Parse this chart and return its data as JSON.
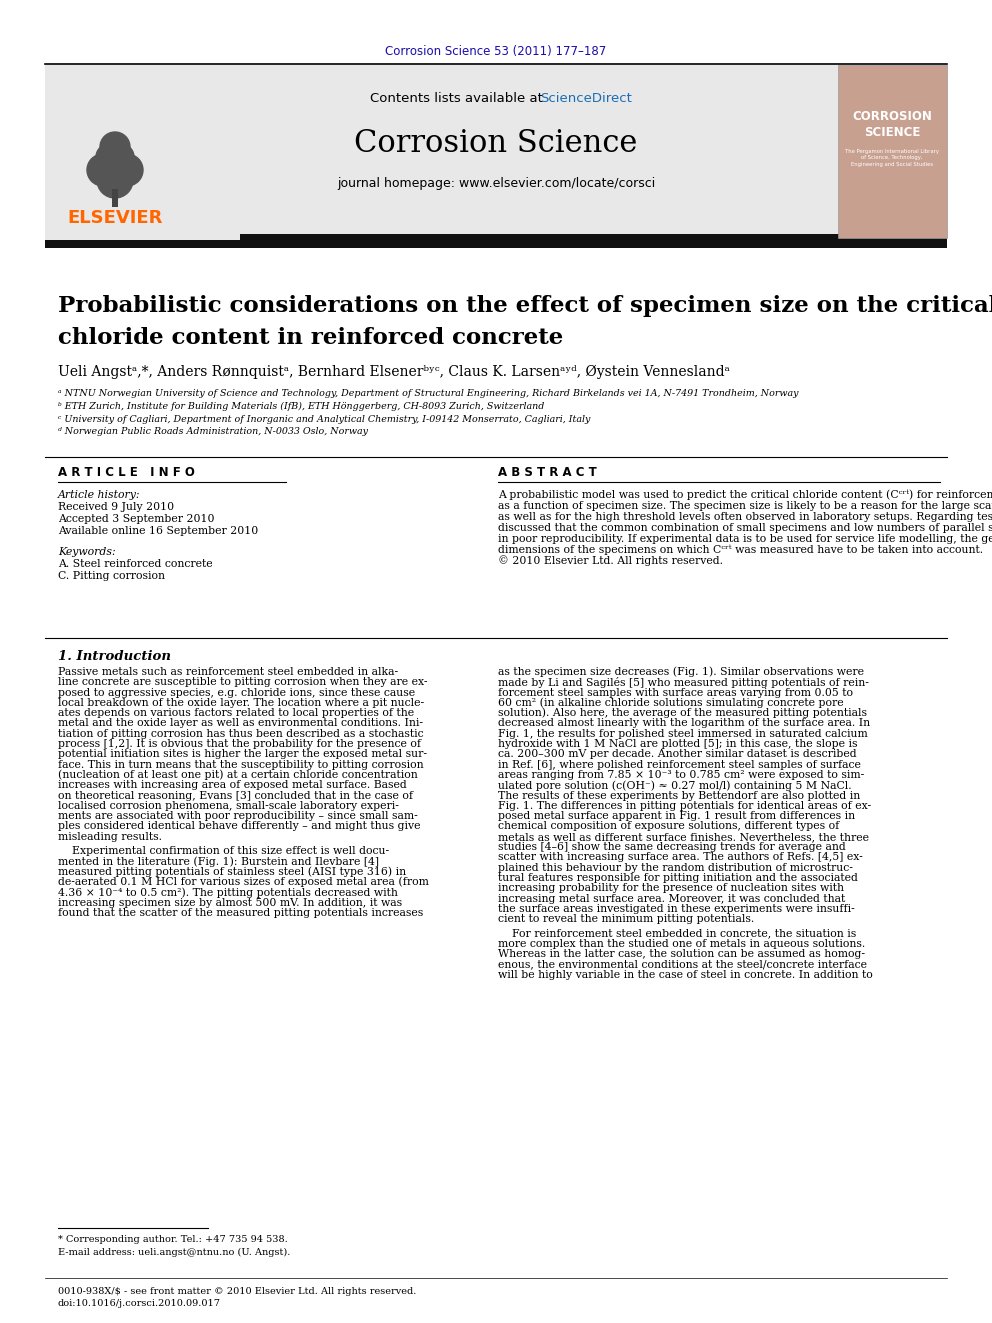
{
  "journal_ref": "Corrosion Science 53 (2011) 177–187",
  "journal_ref_color": "#1a0dab",
  "contents_text": "Contents lists available at ",
  "sciencedirect_text": "ScienceDirect",
  "sciencedirect_color": "#1a6db5",
  "journal_name": "Corrosion Science",
  "journal_homepage": "journal homepage: www.elsevier.com/locate/corsci",
  "title_line1": "Probabilistic considerations on the effect of specimen size on the critical",
  "title_line2": "chloride content in reinforced concrete",
  "authors": "Ueli Angstᵃ,*, Anders Rønnquistᵃ, Bernhard Elsenerᵇʸᶜ, Claus K. Larsenᵃʸᵈ, Øystein Venneslandᵃ",
  "affil_a": "ᵃ NTNU Norwegian University of Science and Technology, Department of Structural Engineering, Richard Birkelands vei 1A, N-7491 Trondheim, Norway",
  "affil_b": "ᵇ ETH Zurich, Institute for Building Materials (IfB), ETH Hönggerberg, CH-8093 Zurich, Switzerland",
  "affil_c": "ᶜ University of Cagliari, Department of Inorganic and Analytical Chemistry, I-09142 Monserrato, Cagliari, Italy",
  "affil_d": "ᵈ Norwegian Public Roads Administration, N-0033 Oslo, Norway",
  "article_info_title": "A R T I C L E   I N F O",
  "article_history_label": "Article history:",
  "received": "Received 9 July 2010",
  "accepted": "Accepted 3 September 2010",
  "available": "Available online 16 September 2010",
  "keywords_label": "Keywords:",
  "keyword1": "A. Steel reinforced concrete",
  "keyword2": "C. Pitting corrosion",
  "abstract_title": "A B S T R A C T",
  "abstract_text": "A probabilistic model was used to predict the critical chloride content (Cᶜʳᵗ) for reinforcement corrosion\nas a function of specimen size. The specimen size is likely to be a reason for the large scatter of Cᶜʳᵗ values\nas well as for the high threshold levels often observed in laboratory setups. Regarding test methods, it is\ndiscussed that the common combination of small specimens and low numbers of parallel samples results\nin poor reproducibility. If experimental data is to be used for service life modelling, the geometrical\ndimensions of the specimens on which Cᶜʳᵗ was measured have to be taken into account.\n© 2010 Elsevier Ltd. All rights reserved.",
  "section1_title": "1. Introduction",
  "intro_col1_para1": "Passive metals such as reinforcement steel embedded in alka-\nline concrete are susceptible to pitting corrosion when they are ex-\nposed to aggressive species, e.g. chloride ions, since these cause\nlocal breakdown of the oxide layer. The location where a pit nucle-\nates depends on various factors related to local properties of the\nmetal and the oxide layer as well as environmental conditions. Ini-\ntiation of pitting corrosion has thus been described as a stochastic\nprocess [1,2]. It is obvious that the probability for the presence of\npotential initiation sites is higher the larger the exposed metal sur-\nface. This in turn means that the susceptibility to pitting corrosion\n(nucleation of at least one pit) at a certain chloride concentration\nincreases with increasing area of exposed metal surface. Based\non theoretical reasoning, Evans [3] concluded that in the case of\nlocalised corrosion phenomena, small-scale laboratory experi-\nments are associated with poor reproducibility – since small sam-\nples considered identical behave differently – and might thus give\nmisleading results.",
  "intro_col1_para2": "    Experimental confirmation of this size effect is well docu-\nmented in the literature (Fig. 1): Burstein and Ilevbare [4]\nmeasured pitting potentials of stainless steel (AISI type 316) in\nde-aerated 0.1 M HCl for various sizes of exposed metal area (from\n4.36 × 10⁻⁴ to 0.5 cm²). The pitting potentials decreased with\nincreasing specimen size by almost 500 mV. In addition, it was\nfound that the scatter of the measured pitting potentials increases",
  "intro_col2_para1": "as the specimen size decreases (Fig. 1). Similar observations were\nmade by Li and Sagilés [5] who measured pitting potentials of rein-\nforcement steel samples with surface areas varying from 0.05 to\n60 cm² (in alkaline chloride solutions simulating concrete pore\nsolution). Also here, the average of the measured pitting potentials\ndecreased almost linearly with the logarithm of the surface area. In\nFig. 1, the results for polished steel immersed in saturated calcium\nhydroxide with 1 M NaCl are plotted [5]; in this case, the slope is\nca. 200–300 mV per decade. Another similar dataset is described\nin Ref. [6], where polished reinforcement steel samples of surface\nareas ranging from 7.85 × 10⁻³ to 0.785 cm² were exposed to sim-\nulated pore solution (c(OH⁻) ≈ 0.27 mol/l) containing 5 M NaCl.\nThe results of these experiments by Bettendorf are also plotted in\nFig. 1. The differences in pitting potentials for identical areas of ex-\nposed metal surface apparent in Fig. 1 result from differences in\nchemical composition of exposure solutions, different types of\nmetals as well as different surface finishes. Nevertheless, the three\nstudies [4–6] show the same decreasing trends for average and\nscatter with increasing surface area. The authors of Refs. [4,5] ex-\nplained this behaviour by the random distribution of microstruc-\ntural features responsible for pitting initiation and the associated\nincreasing probability for the presence of nucleation sites with\nincreasing metal surface area. Moreover, it was concluded that\nthe surface areas investigated in these experiments were insuffi-\ncient to reveal the minimum pitting potentials.",
  "intro_col2_para2": "    For reinforcement steel embedded in concrete, the situation is\nmore complex than the studied one of metals in aqueous solutions.\nWhereas in the latter case, the solution can be assumed as homog-\nenous, the environmental conditions at the steel/concrete interface\nwill be highly variable in the case of steel in concrete. In addition to",
  "footnote_star": "* Corresponding author. Tel.: +47 735 94 538.",
  "footnote_email": "E-mail address: ueli.angst@ntnu.no (U. Angst).",
  "footnote_issn": "0010-938X/$ - see front matter © 2010 Elsevier Ltd. All rights reserved.",
  "footnote_doi": "doi:10.1016/j.corsci.2010.09.017",
  "elsevier_color": "#ff6600",
  "background_color": "#ffffff",
  "gray_header_color": "#e8e8e8"
}
